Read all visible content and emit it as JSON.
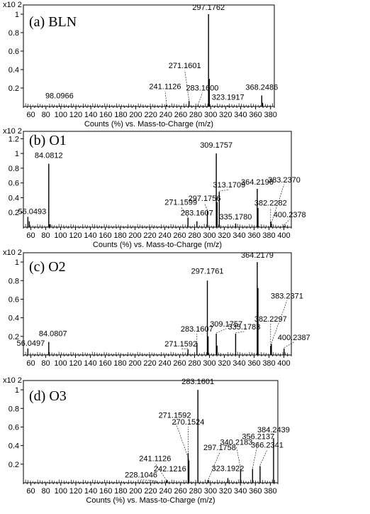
{
  "chart_data": [
    {
      "type": "bar",
      "label": "(a) BLN",
      "scale_label": "x10 2",
      "xlabel": "Counts (%) vs. Mass-to-Charge (m/z)",
      "xlim": [
        50,
        385
      ],
      "ylim": [
        0,
        1.1
      ],
      "xticks": [
        60,
        80,
        100,
        120,
        140,
        160,
        180,
        200,
        220,
        240,
        260,
        280,
        300,
        320,
        340,
        360,
        380
      ],
      "yticks": [
        0.2,
        0.4,
        0.6,
        0.8,
        1
      ],
      "peaks": [
        {
          "x": 98.0966,
          "y": 0.01,
          "label": "98.0966"
        },
        {
          "x": 241.1126,
          "y": 0.02,
          "label": "241.1126"
        },
        {
          "x": 271.1601,
          "y": 0.06,
          "label": "271.1601"
        },
        {
          "x": 283.16,
          "y": 0.01,
          "label": "283.1600"
        },
        {
          "x": 297.1762,
          "y": 1.0,
          "label": "297.1762"
        },
        {
          "x": 298.18,
          "y": 0.3,
          "label": ""
        },
        {
          "x": 323.1917,
          "y": 0.01,
          "label": "323.1917"
        },
        {
          "x": 368.2486,
          "y": 0.12,
          "label": "368.2486"
        },
        {
          "x": 369.25,
          "y": 0.04,
          "label": ""
        }
      ]
    },
    {
      "type": "bar",
      "label": "(b) O1",
      "scale_label": "x10 2",
      "xlabel": "Counts (%) vs. Mass-to-Charge (m/z)",
      "xlim": [
        50,
        410
      ],
      "ylim": [
        0,
        1.3
      ],
      "xticks": [
        60,
        80,
        100,
        120,
        140,
        160,
        180,
        200,
        220,
        240,
        260,
        280,
        300,
        320,
        340,
        360,
        380,
        400
      ],
      "yticks": [
        0.2,
        0.4,
        0.6,
        0.8,
        1,
        1.2
      ],
      "peaks": [
        {
          "x": 56.0493,
          "y": 0.14,
          "label": "56.0493"
        },
        {
          "x": 58.0,
          "y": 0.08,
          "label": ""
        },
        {
          "x": 84.0812,
          "y": 0.86,
          "label": "84.0812"
        },
        {
          "x": 86.0,
          "y": 0.04,
          "label": ""
        },
        {
          "x": 271.1599,
          "y": 0.13,
          "label": "271.1599"
        },
        {
          "x": 283.1607,
          "y": 0.08,
          "label": "283.1607"
        },
        {
          "x": 297.1756,
          "y": 0.22,
          "label": "297.1756"
        },
        {
          "x": 309.1757,
          "y": 1.0,
          "label": "309.1757"
        },
        {
          "x": 310.18,
          "y": 0.34,
          "label": ""
        },
        {
          "x": 313.1709,
          "y": 0.48,
          "label": "313.1709"
        },
        {
          "x": 335.178,
          "y": 0.05,
          "label": "335.1780"
        },
        {
          "x": 364.2196,
          "y": 0.52,
          "label": "364.2196"
        },
        {
          "x": 365.22,
          "y": 0.26,
          "label": ""
        },
        {
          "x": 382.2282,
          "y": 0.08,
          "label": "382.2282"
        },
        {
          "x": 383.237,
          "y": 0.05,
          "label": "383.2370"
        },
        {
          "x": 400.2378,
          "y": 0.02,
          "label": "400.2378"
        }
      ]
    },
    {
      "type": "bar",
      "label": "(c) O2",
      "scale_label": "x10 2",
      "xlabel": "",
      "xlim": [
        50,
        410
      ],
      "ylim": [
        0,
        1.1
      ],
      "xticks": [
        60,
        80,
        100,
        120,
        140,
        160,
        180,
        200,
        220,
        240,
        260,
        280,
        300,
        320,
        340,
        360,
        380,
        400
      ],
      "yticks": [
        0.2,
        0.4,
        0.6,
        0.8,
        1
      ],
      "peaks": [
        {
          "x": 56.0497,
          "y": 0.07,
          "label": "56.0497"
        },
        {
          "x": 84.0807,
          "y": 0.14,
          "label": "84.0807"
        },
        {
          "x": 271.1592,
          "y": 0.06,
          "label": "271.1592"
        },
        {
          "x": 283.1607,
          "y": 0.13,
          "label": "283.1607"
        },
        {
          "x": 297.1761,
          "y": 0.8,
          "label": "297.1761"
        },
        {
          "x": 298.18,
          "y": 0.2,
          "label": ""
        },
        {
          "x": 309.1757,
          "y": 0.23,
          "label": "309.1757"
        },
        {
          "x": 310.18,
          "y": 0.1,
          "label": ""
        },
        {
          "x": 335.1783,
          "y": 0.23,
          "label": "335.1783"
        },
        {
          "x": 364.2179,
          "y": 1.0,
          "label": "364.2179"
        },
        {
          "x": 365.22,
          "y": 0.72,
          "label": ""
        },
        {
          "x": 382.2297,
          "y": 0.1,
          "label": "382.2297"
        },
        {
          "x": 383.2371,
          "y": 0.12,
          "label": "383.2371"
        },
        {
          "x": 400.2387,
          "y": 0.07,
          "label": "400.2387"
        }
      ]
    },
    {
      "type": "bar",
      "label": "(d) O3",
      "scale_label": "x10 2",
      "xlabel": "Counts (%) vs. Mass-to-Charge (m/z)",
      "xlim": [
        50,
        390
      ],
      "ylim": [
        0,
        1.1
      ],
      "xticks": [
        60,
        80,
        100,
        120,
        140,
        160,
        180,
        200,
        220,
        240,
        260,
        280,
        300,
        320,
        340,
        360,
        380
      ],
      "yticks": [
        0.2,
        0.4,
        0.6,
        0.8,
        1
      ],
      "peaks": [
        {
          "x": 228.1046,
          "y": 0.01,
          "label": "228.1046"
        },
        {
          "x": 241.1126,
          "y": 0.02,
          "label": "241.1126"
        },
        {
          "x": 242.1216,
          "y": 0.03,
          "label": "242.1216"
        },
        {
          "x": 270.1524,
          "y": 0.32,
          "label": "270.1524"
        },
        {
          "x": 271.1592,
          "y": 0.24,
          "label": "271.1592"
        },
        {
          "x": 283.1601,
          "y": 1.0,
          "label": "283.1601"
        },
        {
          "x": 297.1758,
          "y": 0.03,
          "label": "297.1758"
        },
        {
          "x": 323.1922,
          "y": 0.05,
          "label": "323.1922"
        },
        {
          "x": 340.2183,
          "y": 0.15,
          "label": "340.2183"
        },
        {
          "x": 356.2137,
          "y": 0.15,
          "label": "356.2137"
        },
        {
          "x": 366.2341,
          "y": 0.18,
          "label": "366.2341"
        },
        {
          "x": 384.2439,
          "y": 0.48,
          "label": "384.2439"
        }
      ]
    }
  ]
}
